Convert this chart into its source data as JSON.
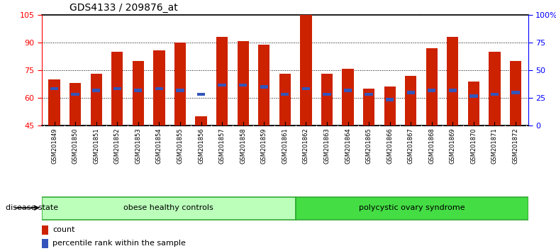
{
  "title": "GDS4133 / 209876_at",
  "samples": [
    "GSM201849",
    "GSM201850",
    "GSM201851",
    "GSM201852",
    "GSM201853",
    "GSM201854",
    "GSM201855",
    "GSM201856",
    "GSM201857",
    "GSM201858",
    "GSM201859",
    "GSM201861",
    "GSM201862",
    "GSM201863",
    "GSM201864",
    "GSM201865",
    "GSM201866",
    "GSM201867",
    "GSM201868",
    "GSM201869",
    "GSM201870",
    "GSM201871",
    "GSM201872"
  ],
  "bar_tops": [
    70,
    68,
    73,
    85,
    80,
    86,
    90,
    50,
    93,
    91,
    89,
    73,
    105,
    73,
    76,
    65,
    66,
    72,
    87,
    93,
    69,
    85,
    80
  ],
  "blue_positions": [
    65,
    62,
    64,
    65,
    64,
    65,
    64,
    62,
    67,
    67,
    66,
    62,
    65,
    62,
    64,
    62,
    59,
    63,
    64,
    64,
    61,
    62,
    63
  ],
  "ymin": 45,
  "ymax": 105,
  "yticks_left": [
    45,
    60,
    75,
    90,
    105
  ],
  "yticks_right": [
    0,
    25,
    50,
    75,
    100
  ],
  "ytick_labels_right": [
    "0",
    "25",
    "50",
    "75",
    "100%"
  ],
  "bar_color": "#cc2200",
  "blue_color": "#3355bb",
  "bg_color": "#ffffff",
  "xlabel_bg": "#cccccc",
  "group1_label": "obese healthy controls",
  "group2_label": "polycystic ovary syndrome",
  "group1_count": 12,
  "group2_count": 11,
  "group1_color": "#bbffbb",
  "group2_color": "#44dd44",
  "disease_label": "disease state",
  "legend_count": "count",
  "legend_percentile": "percentile rank within the sample"
}
